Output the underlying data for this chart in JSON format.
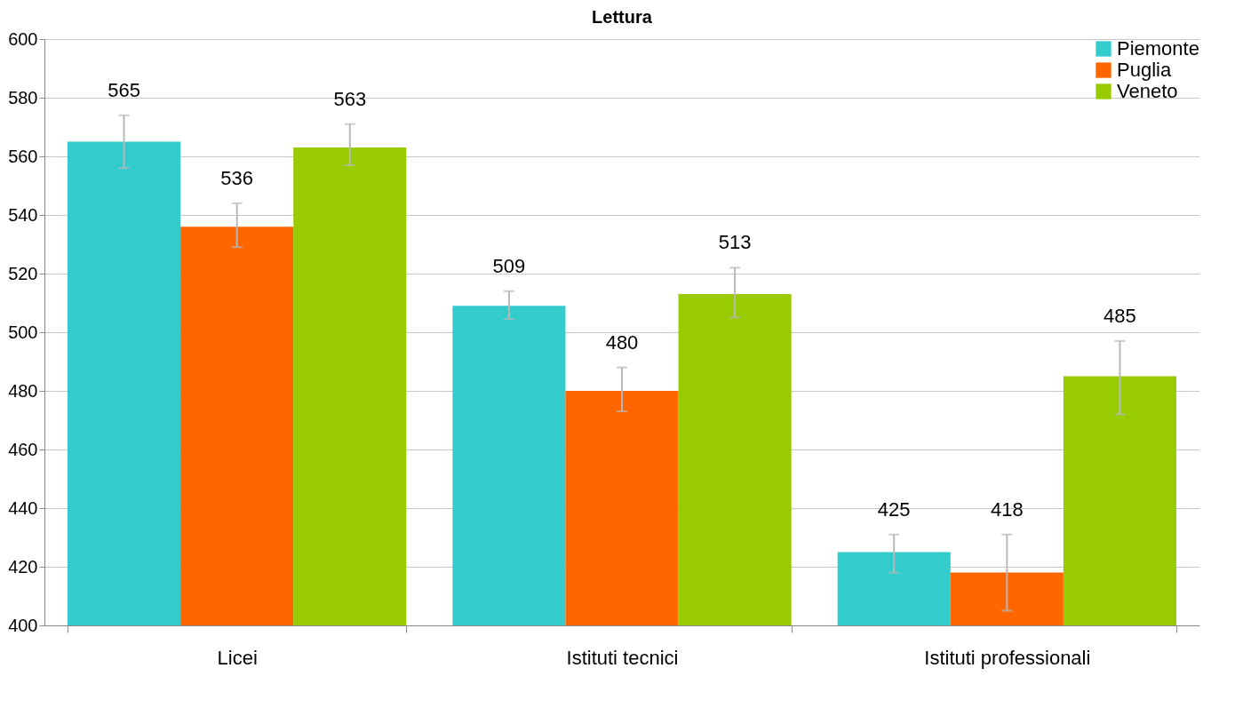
{
  "chart_data": {
    "type": "bar",
    "title": "Lettura",
    "categories": [
      "Licei",
      "Istituti tecnici",
      "Istituti professionali"
    ],
    "series": [
      {
        "name": "Piemonte",
        "color": "#33cccc",
        "values": [
          565,
          509,
          425
        ],
        "errors": [
          [
            556,
            574
          ],
          [
            504.5,
            514
          ],
          [
            418,
            431
          ]
        ]
      },
      {
        "name": "Puglia",
        "color": "#ff6600",
        "values": [
          536,
          480,
          418
        ],
        "errors": [
          [
            529,
            544
          ],
          [
            473,
            488
          ],
          [
            405,
            431
          ]
        ]
      },
      {
        "name": "Veneto",
        "color": "#99cc00",
        "values": [
          563,
          513,
          485
        ],
        "errors": [
          [
            557,
            571
          ],
          [
            505,
            522
          ],
          [
            472,
            497
          ]
        ]
      }
    ],
    "ylim": [
      400,
      600
    ],
    "yticks": [
      400,
      420,
      440,
      460,
      480,
      500,
      520,
      540,
      560,
      580,
      600
    ],
    "grid": "y",
    "legend": "top right",
    "data_labels": true
  }
}
